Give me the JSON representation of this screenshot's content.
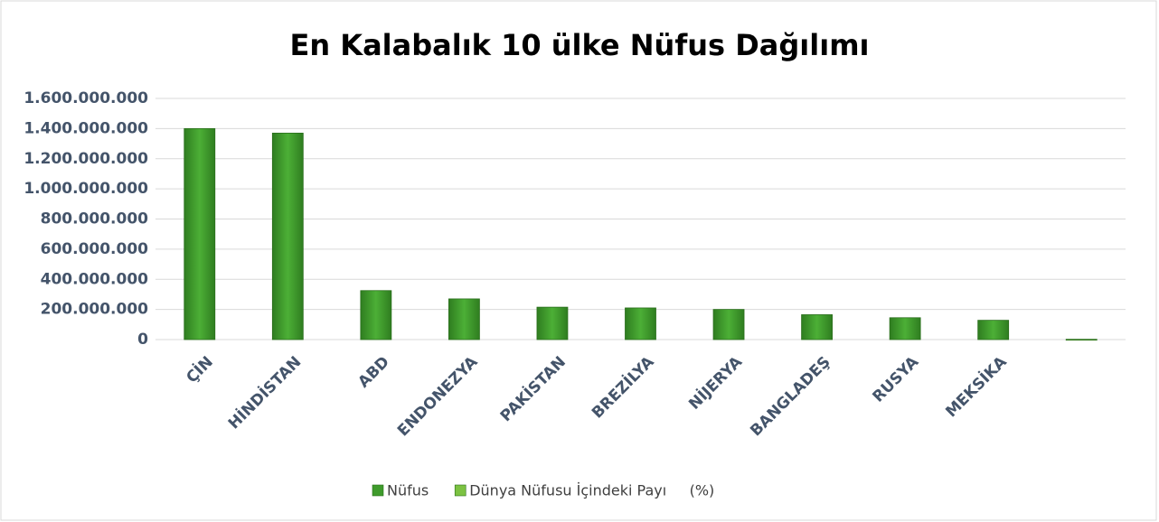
{
  "chart_data": {
    "type": "bar",
    "title": "En Kalabalık 10 ülke Nüfus Dağılımı",
    "categories": [
      "ÇİN",
      "HİNDİSTAN",
      "ABD",
      "ENDONEZYA",
      "PAKİSTAN",
      "BREZİLYA",
      "NİJERYA",
      "BANGLADEŞ",
      "RUSYA",
      "MEKSİKA",
      null
    ],
    "series": [
      {
        "name": "Nüfus",
        "color": "#3f9b2c",
        "values": [
          1400000000,
          1370000000,
          325000000,
          270000000,
          215000000,
          210000000,
          200000000,
          165000000,
          145000000,
          128000000,
          null
        ]
      },
      {
        "name": "Dünya Nüfusu İçindeki Payı     (%)",
        "color": "#7cc242",
        "values": [
          null,
          null,
          null,
          null,
          null,
          null,
          null,
          null,
          null,
          null,
          2000000
        ]
      }
    ],
    "ylim": [
      0,
      1600000000
    ],
    "yticks": [
      0,
      {
        "value": 200000000,
        "label": "200.000.000"
      },
      {
        "value": 400000000,
        "label": "400.000.000"
      },
      {
        "value": 600000000,
        "label": "600.000.000"
      },
      {
        "value": 800000000,
        "label": "800.000.000"
      },
      {
        "value": 1000000000,
        "label": "1.000.000.000"
      },
      {
        "value": 1200000000,
        "label": "1.200.000.000"
      },
      {
        "value": 1400000000,
        "label": "1.400.000.000"
      },
      {
        "value": 1600000000,
        "label": "1.600.000.000"
      }
    ],
    "grid": true,
    "legend": "bottom"
  }
}
